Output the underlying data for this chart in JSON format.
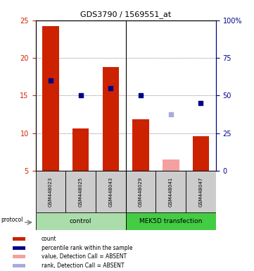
{
  "title": "GDS3790 / 1569551_at",
  "samples": [
    "GSM448023",
    "GSM448025",
    "GSM448043",
    "GSM448029",
    "GSM448041",
    "GSM448047"
  ],
  "bar_values": [
    24.2,
    10.6,
    18.8,
    11.8,
    null,
    9.6
  ],
  "bar_absent_values": [
    null,
    null,
    null,
    null,
    6.5,
    null
  ],
  "blue_dot_values": [
    17.0,
    15.0,
    16.0,
    15.0,
    null,
    14.0
  ],
  "blue_absent_dot_values": [
    null,
    null,
    null,
    null,
    12.5,
    null
  ],
  "ylim_left": [
    5,
    25
  ],
  "ylim_right": [
    0,
    100
  ],
  "yticks_left": [
    5,
    10,
    15,
    20,
    25
  ],
  "yticks_right": [
    0,
    25,
    50,
    75,
    100
  ],
  "bar_color": "#cc2200",
  "bar_absent_color": "#f4a0a0",
  "dot_color": "#00008b",
  "dot_absent_color": "#aaaadd",
  "legend_items": [
    {
      "label": "count",
      "color": "#cc2200"
    },
    {
      "label": "percentile rank within the sample",
      "color": "#00008b"
    },
    {
      "label": "value, Detection Call = ABSENT",
      "color": "#f4a0a0"
    },
    {
      "label": "rank, Detection Call = ABSENT",
      "color": "#aaaadd"
    }
  ],
  "left_tick_color": "#cc2200",
  "right_tick_color": "#00008b",
  "bar_width": 0.55,
  "dot_size": 18,
  "group_sep": 2.5,
  "control_color": "#aaddaa",
  "mek_color": "#44cc44",
  "sample_box_color": "#cccccc",
  "grid_linestyle": ":",
  "grid_color": "#555555"
}
